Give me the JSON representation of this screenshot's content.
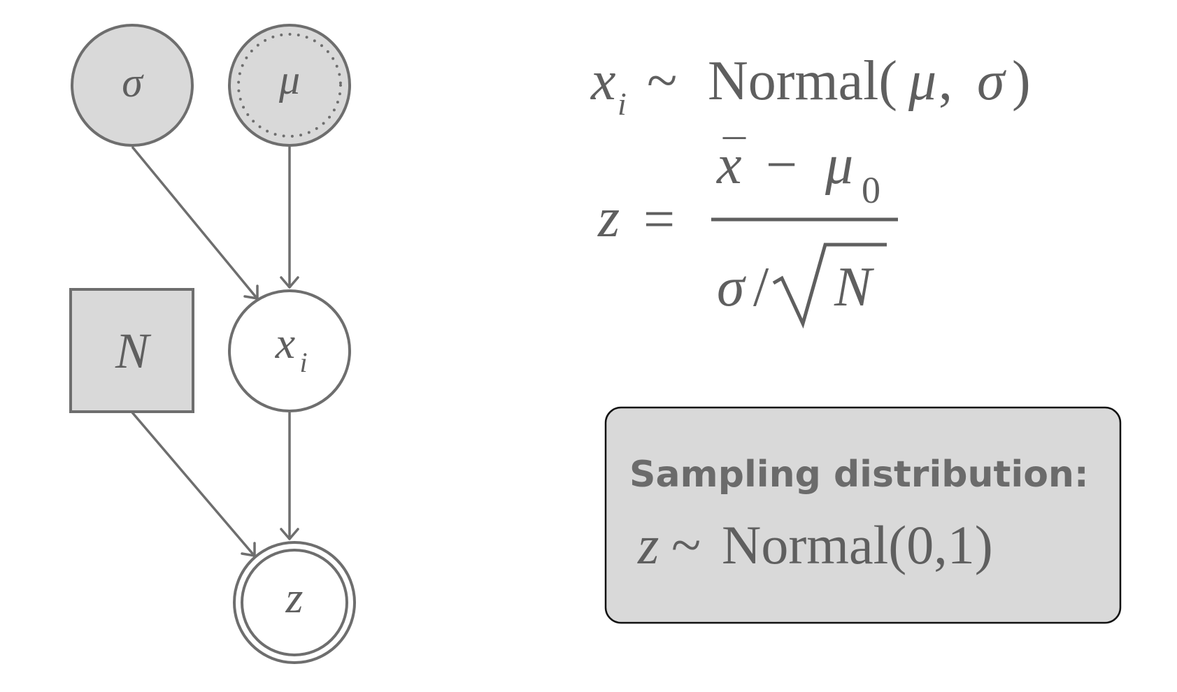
{
  "graph": {
    "nodes": {
      "sigma": {
        "label": "σ",
        "kind": "observed-circle"
      },
      "mu": {
        "label": "μ",
        "kind": "observed-circle-dotted"
      },
      "N": {
        "label": "N",
        "kind": "observed-square"
      },
      "x": {
        "label": "x",
        "subscript": "i",
        "kind": "latent-circle"
      },
      "z": {
        "label": "z",
        "kind": "latent-double-circle"
      }
    },
    "edges": [
      {
        "from": "sigma",
        "to": "x"
      },
      {
        "from": "mu",
        "to": "x"
      },
      {
        "from": "x",
        "to": "z"
      },
      {
        "from": "N",
        "to": "z"
      }
    ]
  },
  "equations": {
    "likelihood": {
      "var": "x",
      "sub": "i",
      "rel": "~",
      "dist": "Normal(",
      "arg1": "μ",
      "sep": ", ",
      "arg2": "σ",
      "close": ")"
    },
    "zscore": {
      "lhs": "z",
      "eq": "=",
      "num_xbar": "x",
      "num_bar": "¯",
      "num_minus": "−",
      "num_mu": "μ",
      "num_sub": "0",
      "den_sigma": "σ",
      "den_slash": "/",
      "den_N": "N"
    }
  },
  "callout": {
    "title": "Sampling distribution:",
    "var": "z",
    "rel": "~",
    "dist": "Normal(0,1)"
  },
  "colors": {
    "stroke": "#6e6e6e",
    "observed_fill": "#d9d9d9",
    "callout_fill": "#d9d9d9",
    "text": "#5f5f5f"
  }
}
